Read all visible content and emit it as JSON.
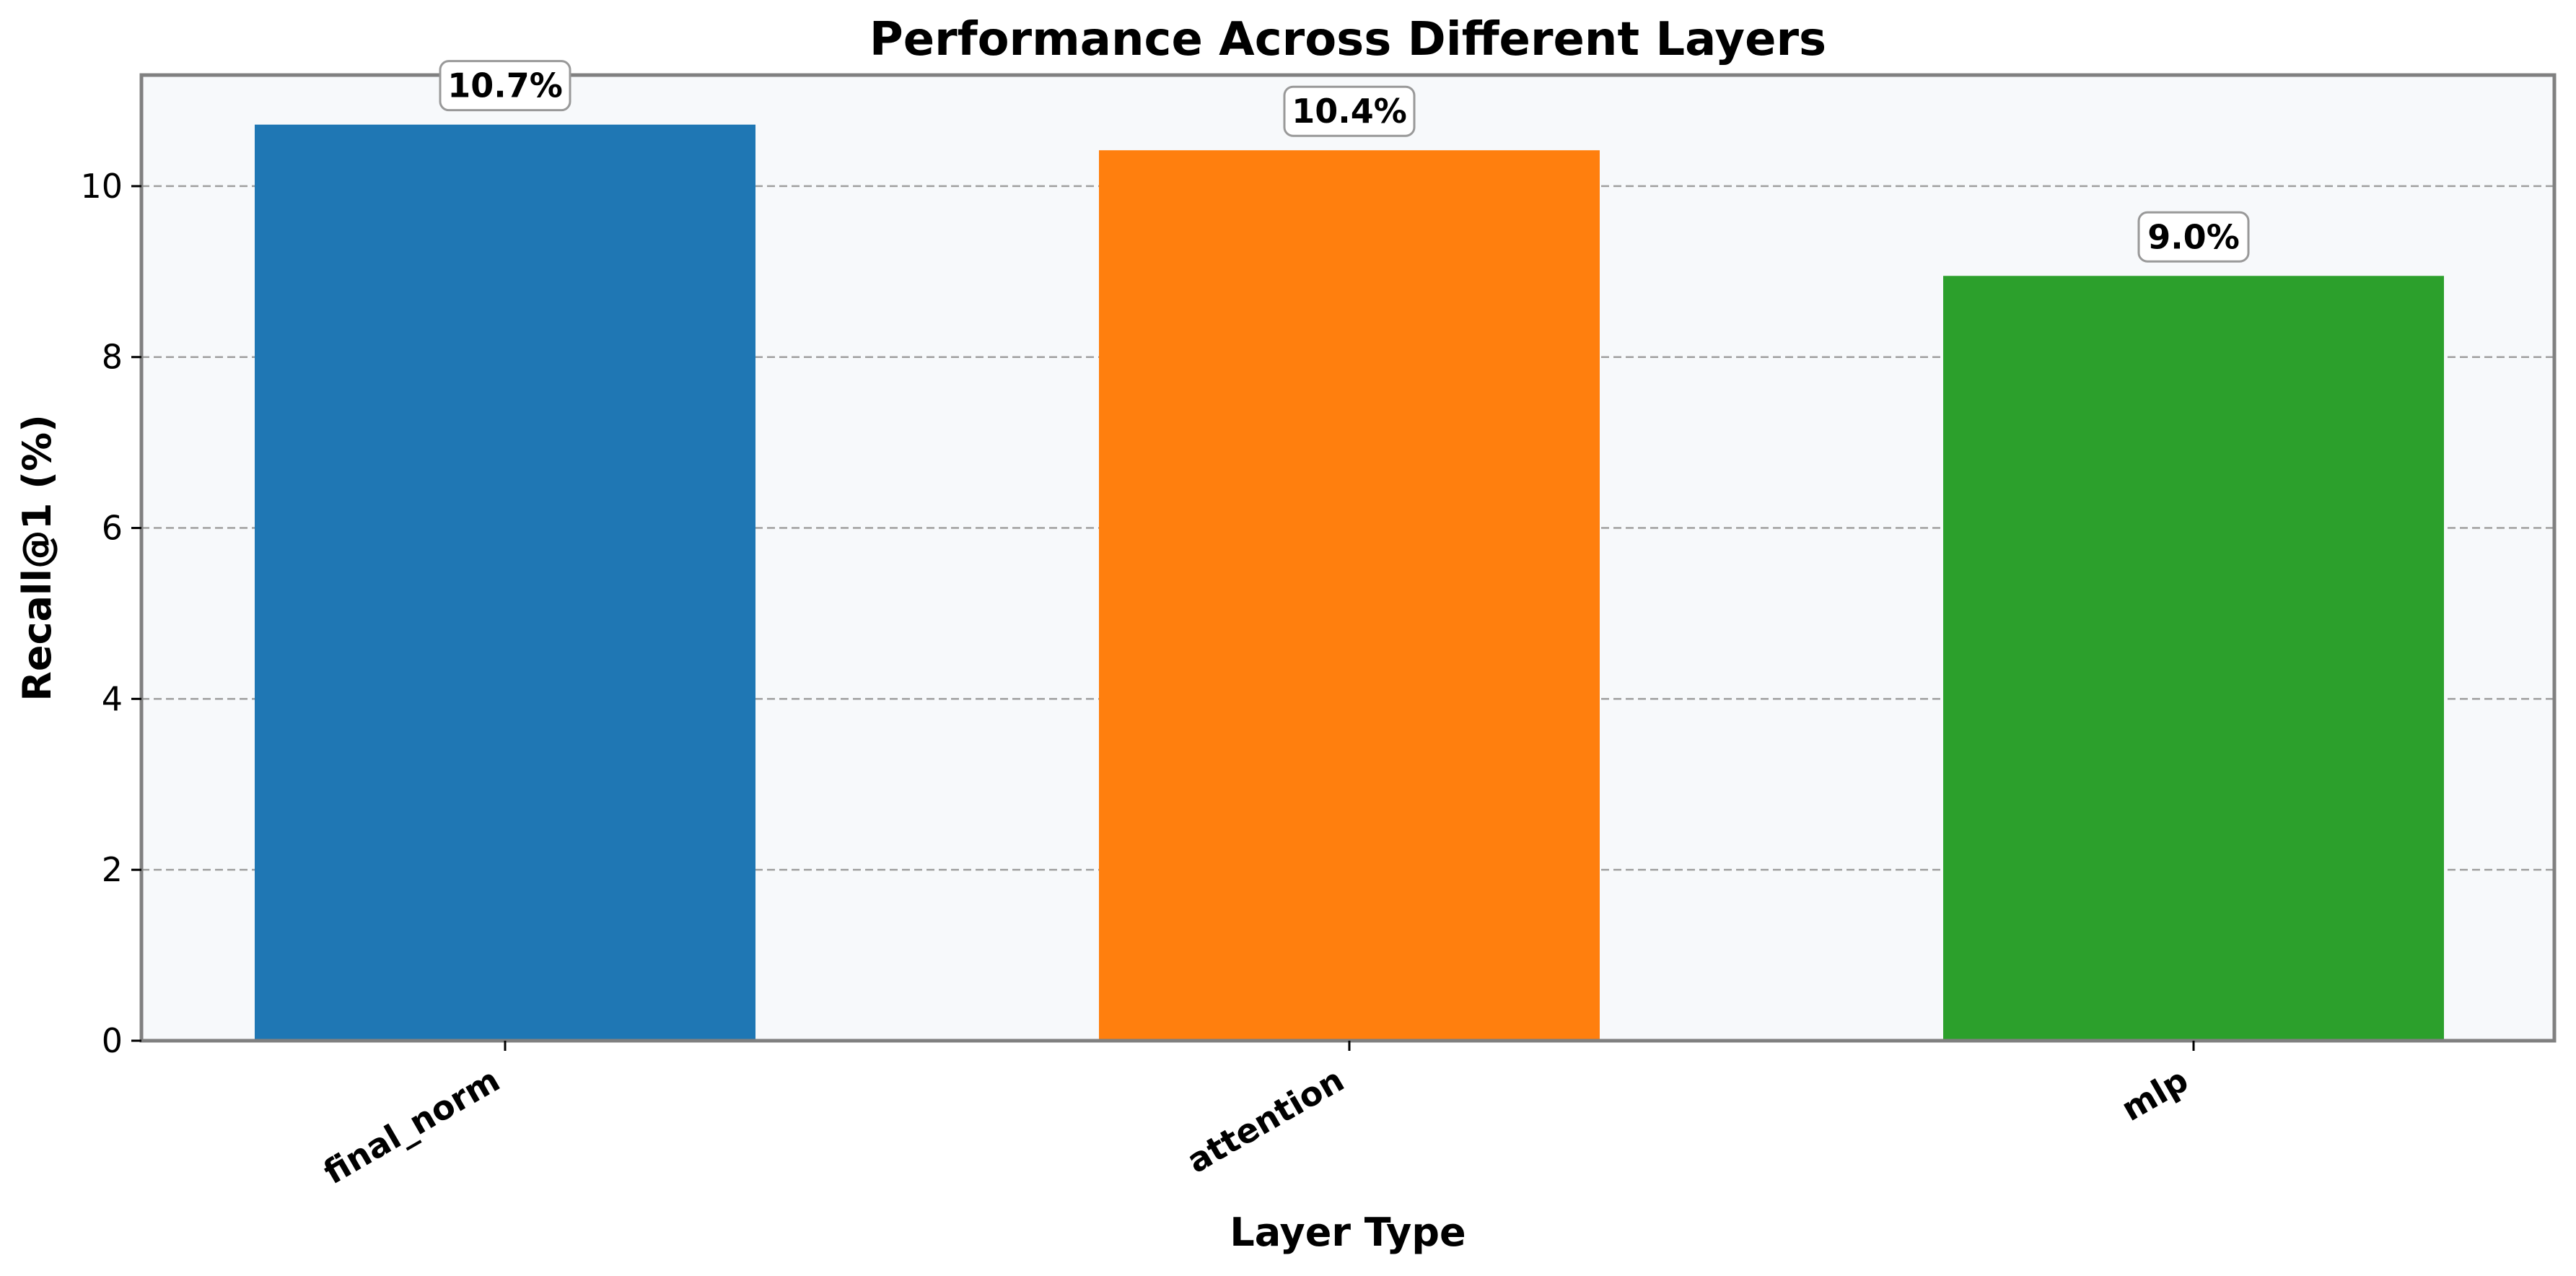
{
  "chart_data": {
    "type": "bar",
    "title": "Performance Across Different Layers",
    "xlabel": "Layer Type",
    "ylabel": "Recall@1 (%)",
    "categories": [
      "final_norm",
      "attention",
      "mlp"
    ],
    "values": [
      10.72,
      10.42,
      8.95
    ],
    "value_labels": [
      "10.7%",
      "10.4%",
      "9.0%"
    ],
    "colors": [
      "#1f77b4",
      "#ff7f0e",
      "#2ca02c"
    ],
    "ylim": [
      0,
      11.3
    ],
    "yticks": [
      0,
      2,
      4,
      6,
      8,
      10
    ],
    "ytick_labels": [
      "0",
      "2",
      "4",
      "6",
      "8",
      "10"
    ],
    "grid": "y-dashed",
    "plot_background": "#f7f9fb",
    "frame_color": "#808080",
    "grid_color": "#a0a0a0"
  }
}
